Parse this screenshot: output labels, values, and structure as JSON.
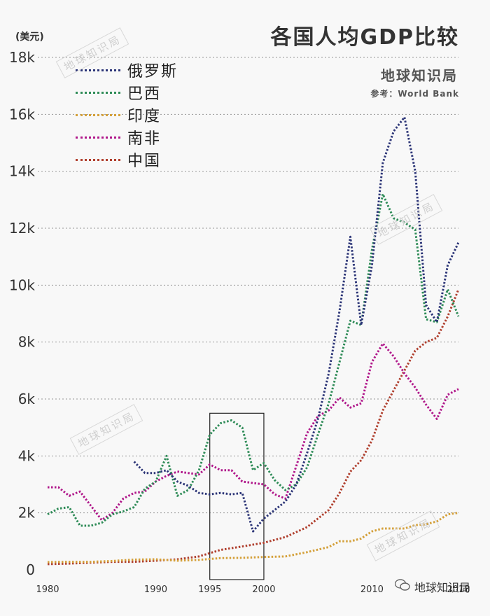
{
  "header": {
    "title": "各国人均GDP比较",
    "brand": "地球知识局",
    "source": "参考：World Bank",
    "unit": "(美元)"
  },
  "watermark": "地球知识局",
  "footer": {
    "wechat_icon": "wechat-bubble-icon",
    "label": "地球知识局"
  },
  "colors": {
    "russia": "#2c3577",
    "brazil": "#2e8b57",
    "india": "#d4a03a",
    "south_africa": "#b0178a",
    "china": "#b0402f",
    "grid": "#999999",
    "box": "#222222"
  },
  "chart_data": {
    "type": "line",
    "title": "各国人均GDP比较",
    "ylabel": "(美元)",
    "xlim": [
      1980,
      2018
    ],
    "ylim": [
      0,
      18000
    ],
    "yticks": [
      0,
      2000,
      4000,
      6000,
      8000,
      10000,
      12000,
      14000,
      16000,
      18000
    ],
    "ytick_labels": [
      "0",
      "2k",
      "4k",
      "6k",
      "8k",
      "10k",
      "12k",
      "14k",
      "16k",
      "18k"
    ],
    "xticks": [
      1980,
      1990,
      1995,
      2000,
      2010,
      2018
    ],
    "xtick_labels": [
      "1980",
      "1990",
      "1995",
      "2000",
      "2010",
      "2018"
    ],
    "grid": "horizontal-dotted",
    "legend_position": "top-left",
    "highlight_box": {
      "x0": 1995,
      "x1": 2000,
      "y0": 0,
      "y1": 5500
    },
    "series": [
      {
        "key": "russia",
        "name": "俄罗斯",
        "x": [
          1988,
          1989,
          1990,
          1991,
          1992,
          1993,
          1994,
          1995,
          1996,
          1997,
          1998,
          1999,
          2000,
          2001,
          2002,
          2003,
          2004,
          2005,
          2006,
          2007,
          2008,
          2009,
          2010,
          2011,
          2012,
          2013,
          2014,
          2015,
          2016,
          2017,
          2018
        ],
        "y": [
          3800,
          3400,
          3400,
          3500,
          3100,
          2950,
          2700,
          2650,
          2700,
          2650,
          2700,
          1350,
          1800,
          2100,
          2400,
          3000,
          4100,
          5300,
          6900,
          9100,
          11700,
          8600,
          10700,
          14300,
          15400,
          15900,
          14000,
          9300,
          8700,
          10700,
          11500
        ]
      },
      {
        "key": "brazil",
        "name": "巴西",
        "x": [
          1980,
          1981,
          1982,
          1983,
          1984,
          1985,
          1986,
          1987,
          1988,
          1989,
          1990,
          1991,
          1992,
          1993,
          1994,
          1995,
          1996,
          1997,
          1998,
          1999,
          2000,
          2001,
          2002,
          2003,
          2004,
          2005,
          2006,
          2007,
          2008,
          2009,
          2010,
          2011,
          2012,
          2013,
          2014,
          2015,
          2016,
          2017,
          2018
        ],
        "y": [
          1950,
          2150,
          2200,
          1550,
          1550,
          1650,
          1950,
          2050,
          2200,
          2850,
          3100,
          4000,
          2600,
          2800,
          3500,
          4750,
          5150,
          5250,
          5000,
          3500,
          3750,
          3150,
          2800,
          3000,
          3600,
          4750,
          5850,
          7300,
          8750,
          8600,
          11250,
          13200,
          12350,
          12200,
          11950,
          8800,
          8700,
          9850,
          8900
        ]
      },
      {
        "key": "india",
        "name": "印度",
        "x": [
          1980,
          1982,
          1984,
          1986,
          1988,
          1990,
          1992,
          1994,
          1996,
          1998,
          2000,
          2002,
          2004,
          2006,
          2007,
          2008,
          2009,
          2010,
          2011,
          2012,
          2013,
          2014,
          2015,
          2016,
          2017,
          2018
        ],
        "y": [
          270,
          280,
          280,
          310,
          360,
          370,
          320,
          350,
          410,
          420,
          450,
          470,
          620,
          800,
          1000,
          1000,
          1100,
          1350,
          1450,
          1450,
          1450,
          1570,
          1600,
          1700,
          1950,
          2000
        ]
      },
      {
        "key": "south_africa",
        "name": "南非",
        "x": [
          1980,
          1981,
          1982,
          1983,
          1984,
          1985,
          1986,
          1987,
          1988,
          1989,
          1990,
          1991,
          1992,
          1993,
          1994,
          1995,
          1996,
          1997,
          1998,
          1999,
          2000,
          2001,
          2002,
          2003,
          2004,
          2005,
          2006,
          2007,
          2008,
          2009,
          2010,
          2011,
          2012,
          2013,
          2014,
          2015,
          2016,
          2017,
          2018
        ],
        "y": [
          2900,
          2900,
          2600,
          2750,
          2250,
          1750,
          2000,
          2500,
          2700,
          2750,
          3100,
          3300,
          3450,
          3400,
          3350,
          3700,
          3500,
          3500,
          3100,
          3050,
          3000,
          2650,
          2500,
          3650,
          4800,
          5400,
          5600,
          6050,
          5700,
          5850,
          7300,
          7950,
          7500,
          6900,
          6400,
          5800,
          5300,
          6150,
          6350
        ]
      },
      {
        "key": "china",
        "name": "中国",
        "x": [
          1980,
          1982,
          1984,
          1986,
          1988,
          1990,
          1992,
          1994,
          1996,
          1998,
          2000,
          2002,
          2004,
          2006,
          2007,
          2008,
          2009,
          2010,
          2011,
          2012,
          2013,
          2014,
          2015,
          2016,
          2017,
          2018
        ],
        "y": [
          200,
          220,
          250,
          280,
          280,
          320,
          370,
          470,
          700,
          820,
          950,
          1150,
          1500,
          2100,
          2700,
          3450,
          3850,
          4550,
          5600,
          6300,
          7000,
          7700,
          8000,
          8150,
          8900,
          9850
        ]
      }
    ]
  }
}
